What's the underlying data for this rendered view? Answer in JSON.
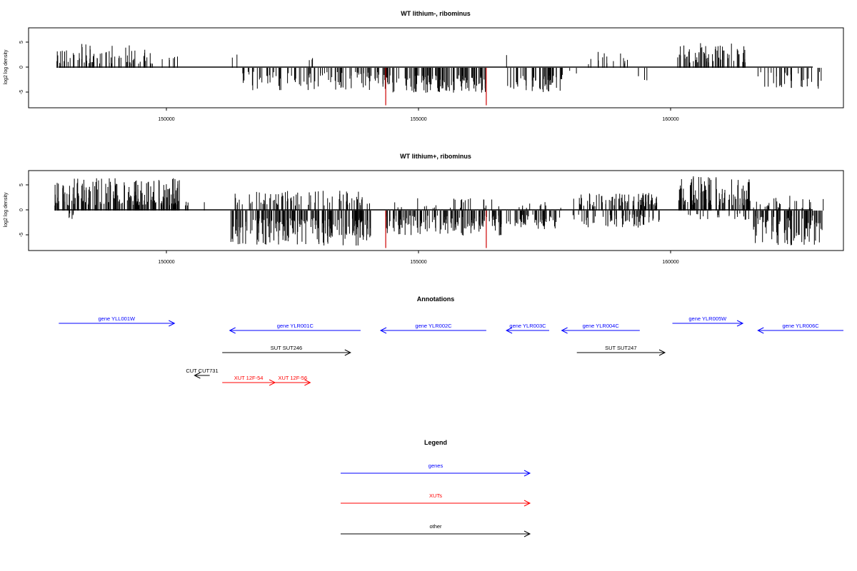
{
  "chart_data": [
    {
      "type": "bar",
      "title": "WT lithium-, ribominus",
      "ylabel": "log2 log density",
      "xlabel": "",
      "xlim": [
        147200,
        163400
      ],
      "ylim": [
        -8,
        8
      ],
      "x_ticks": [
        150000,
        155000,
        160000
      ],
      "y_ticks": [
        5,
        0,
        -5
      ],
      "grid": false,
      "series": [
        {
          "segments": [
            {
              "start": 147700,
              "end": 149700,
              "sign": 1,
              "min": 0.8,
              "max": 4.8,
              "count": 70
            },
            {
              "start": 149700,
              "end": 150300,
              "sign": 1,
              "min": 1.0,
              "max": 2.8,
              "count": 6
            },
            {
              "start": 151200,
              "end": 151400,
              "sign": 1,
              "min": 2.0,
              "max": 3.2,
              "count": 2
            },
            {
              "start": 151400,
              "end": 154300,
              "sign": -1,
              "min": 0.8,
              "max": 4.5,
              "count": 95
            },
            {
              "start": 152600,
              "end": 153400,
              "sign": 1,
              "min": 1.0,
              "max": 2.6,
              "count": 3
            },
            {
              "start": 154300,
              "end": 156300,
              "sign": -1,
              "min": 1.5,
              "max": 5.0,
              "count": 120
            },
            {
              "start": 156700,
              "end": 157800,
              "sign": -1,
              "min": 1.5,
              "max": 5.0,
              "count": 55
            },
            {
              "start": 156700,
              "end": 156800,
              "sign": 1,
              "min": 2.5,
              "max": 3.0,
              "count": 1
            },
            {
              "start": 157800,
              "end": 158100,
              "sign": -1,
              "min": 0.5,
              "max": 2.0,
              "count": 3
            },
            {
              "start": 158100,
              "end": 159200,
              "sign": 1,
              "min": 0.5,
              "max": 3.5,
              "count": 14
            },
            {
              "start": 159200,
              "end": 159700,
              "sign": -1,
              "min": 1.0,
              "max": 2.8,
              "count": 4
            },
            {
              "start": 160100,
              "end": 161500,
              "sign": 1,
              "min": 1.0,
              "max": 5.0,
              "count": 65
            },
            {
              "start": 161700,
              "end": 163000,
              "sign": -1,
              "min": 0.8,
              "max": 4.2,
              "count": 38
            }
          ]
        }
      ],
      "highlights": [
        {
          "x": 154300,
          "y": -7.5,
          "color": "#cc0000"
        },
        {
          "x": 156300,
          "y": -7.5,
          "color": "#cc0000"
        }
      ]
    },
    {
      "type": "bar",
      "title": "WT lithium+, ribominus",
      "ylabel": "log2 log density",
      "xlabel": "",
      "xlim": [
        147200,
        163400
      ],
      "ylim": [
        -8,
        8
      ],
      "x_ticks": [
        150000,
        155000,
        160000
      ],
      "y_ticks": [
        5,
        0,
        -5
      ],
      "grid": false,
      "series": [
        {
          "segments": [
            {
              "start": 147700,
              "end": 150200,
              "sign": 1,
              "min": 1.0,
              "max": 6.5,
              "count": 190
            },
            {
              "start": 147800,
              "end": 148100,
              "sign": -1,
              "min": 0.5,
              "max": 2.0,
              "count": 6
            },
            {
              "start": 150200,
              "end": 150400,
              "sign": 1,
              "min": 0.8,
              "max": 2.0,
              "count": 4
            },
            {
              "start": 150600,
              "end": 150700,
              "sign": 1,
              "min": 1.5,
              "max": 2.0,
              "count": 1
            },
            {
              "start": 151200,
              "end": 154000,
              "sign": -1,
              "min": 1.5,
              "max": 7.0,
              "count": 200
            },
            {
              "start": 151200,
              "end": 154000,
              "sign": 1,
              "min": 1.0,
              "max": 4.0,
              "count": 80
            },
            {
              "start": 154300,
              "end": 156600,
              "sign": -1,
              "min": 1.0,
              "max": 5.0,
              "count": 150
            },
            {
              "start": 154300,
              "end": 156600,
              "sign": 1,
              "min": 0.5,
              "max": 2.5,
              "count": 25
            },
            {
              "start": 156700,
              "end": 157800,
              "sign": -1,
              "min": 0.8,
              "max": 3.8,
              "count": 55
            },
            {
              "start": 156700,
              "end": 157800,
              "sign": 1,
              "min": 0.5,
              "max": 1.8,
              "count": 10
            },
            {
              "start": 158000,
              "end": 159800,
              "sign": 1,
              "min": 0.8,
              "max": 3.5,
              "count": 85
            },
            {
              "start": 158000,
              "end": 159800,
              "sign": -1,
              "min": 0.8,
              "max": 3.5,
              "count": 60
            },
            {
              "start": 160100,
              "end": 161600,
              "sign": 1,
              "min": 1.0,
              "max": 7.0,
              "count": 110
            },
            {
              "start": 160100,
              "end": 161600,
              "sign": -1,
              "min": 0.5,
              "max": 2.0,
              "count": 20
            },
            {
              "start": 161600,
              "end": 163000,
              "sign": -1,
              "min": 1.0,
              "max": 7.0,
              "count": 90
            },
            {
              "start": 161600,
              "end": 163000,
              "sign": 1,
              "min": 0.5,
              "max": 3.0,
              "count": 25
            }
          ]
        }
      ],
      "highlights": [
        {
          "x": 154300,
          "y": -7.5,
          "color": "#cc0000"
        },
        {
          "x": 156300,
          "y": -7.5,
          "color": "#cc0000"
        }
      ]
    }
  ],
  "annotations": {
    "title": "Annotations",
    "features": [
      {
        "label": "gene YLL001W",
        "start": 147800,
        "end": 150100,
        "strand": "+",
        "color": "#0000ff",
        "row": 0
      },
      {
        "label": "gene YLR001C",
        "start": 151200,
        "end": 153800,
        "strand": "-",
        "color": "#0000ff",
        "row": 1
      },
      {
        "label": "gene YLR002C",
        "start": 154200,
        "end": 156300,
        "strand": "-",
        "color": "#0000ff",
        "row": 1
      },
      {
        "label": "gene YLR003C",
        "start": 156700,
        "end": 157550,
        "strand": "-",
        "color": "#0000ff",
        "row": 1
      },
      {
        "label": "gene YLR004C",
        "start": 157800,
        "end": 159350,
        "strand": "-",
        "color": "#0000ff",
        "row": 1
      },
      {
        "label": "gene YLR005W",
        "start": 160000,
        "end": 161400,
        "strand": "+",
        "color": "#0000ff",
        "row": 0
      },
      {
        "label": "gene YLR006C",
        "start": 161700,
        "end": 163400,
        "strand": "-",
        "color": "#0000ff",
        "row": 1
      },
      {
        "label": "SUT SUT246",
        "start": 151050,
        "end": 153600,
        "strand": "+",
        "color": "#000000",
        "row": 2
      },
      {
        "label": "SUT SUT247",
        "start": 158100,
        "end": 159850,
        "strand": "+",
        "color": "#000000",
        "row": 2
      },
      {
        "label": "CUT CUT731",
        "start": 150500,
        "end": 150800,
        "strand": "-",
        "color": "#000000",
        "row": 3
      },
      {
        "label": "XUT 12F-54",
        "start": 151050,
        "end": 152100,
        "strand": "+",
        "color": "#ff0000",
        "row": 4
      },
      {
        "label": "XUT 12F-56",
        "start": 152100,
        "end": 152800,
        "strand": "+",
        "color": "#ff0000",
        "row": 4
      }
    ]
  },
  "legend": {
    "title": "Legend",
    "items": [
      {
        "label": "genes",
        "color": "#0000ff"
      },
      {
        "label": "XUTs",
        "color": "#ff0000"
      },
      {
        "label": "other",
        "color": "#000000"
      }
    ]
  }
}
